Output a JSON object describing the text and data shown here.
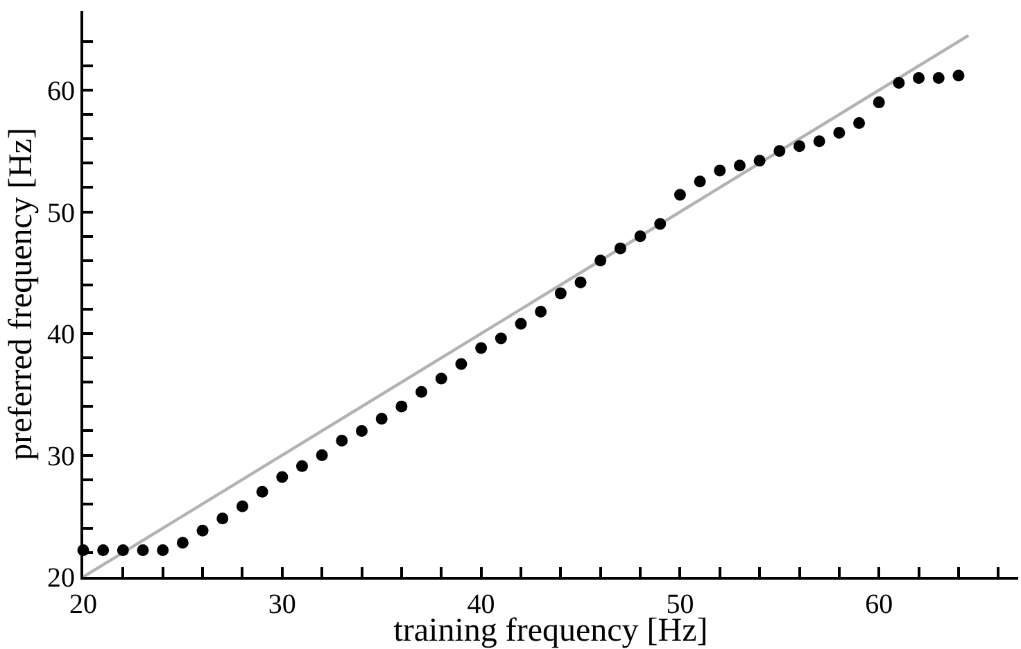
{
  "chart_data": {
    "type": "scatter",
    "xlabel": "training frequency [Hz]",
    "ylabel": "preferred frequency [Hz]",
    "xlim": [
      20,
      67
    ],
    "ylim": [
      20,
      66.5
    ],
    "xticks": [
      20,
      {
        "value": 22,
        "label": null
      },
      {
        "value": 24,
        "label": null
      },
      {
        "value": 26,
        "label": null
      },
      {
        "value": 28,
        "label": null
      },
      30,
      {
        "value": 32,
        "label": null
      },
      {
        "value": 34,
        "label": null
      },
      {
        "value": 36,
        "label": null
      },
      {
        "value": 38,
        "label": null
      },
      40,
      {
        "value": 42,
        "label": null
      },
      {
        "value": 44,
        "label": null
      },
      {
        "value": 46,
        "label": null
      },
      {
        "value": 48,
        "label": null
      },
      50,
      {
        "value": 52,
        "label": null
      },
      {
        "value": 54,
        "label": null
      },
      {
        "value": 56,
        "label": null
      },
      {
        "value": 58,
        "label": null
      },
      60,
      {
        "value": 62,
        "label": null
      },
      {
        "value": 64,
        "label": null
      },
      {
        "value": 66,
        "label": null
      }
    ],
    "yticks": [
      20,
      {
        "value": 22,
        "label": null
      },
      {
        "value": 24,
        "label": null
      },
      {
        "value": 26,
        "label": null
      },
      {
        "value": 28,
        "label": null
      },
      30,
      {
        "value": 32,
        "label": null
      },
      {
        "value": 34,
        "label": null
      },
      {
        "value": 36,
        "label": null
      },
      {
        "value": 38,
        "label": null
      },
      40,
      {
        "value": 42,
        "label": null
      },
      {
        "value": 44,
        "label": null
      },
      {
        "value": 46,
        "label": null
      },
      {
        "value": 48,
        "label": null
      },
      50,
      {
        "value": 52,
        "label": null
      },
      {
        "value": 54,
        "label": null
      },
      {
        "value": 56,
        "label": null
      },
      {
        "value": 58,
        "label": null
      },
      60,
      {
        "value": 62,
        "label": null
      },
      {
        "value": 64,
        "label": null
      }
    ],
    "series": [
      {
        "type": "line",
        "color": "#b3b3b3",
        "marker": "none",
        "line_style": "solid",
        "x": [
          20,
          64.5
        ],
        "values": [
          20,
          64.5
        ]
      },
      {
        "color": "#000000",
        "marker": "circle",
        "x": [
          20,
          21,
          22,
          23,
          24,
          25,
          26,
          27,
          28,
          29,
          30,
          31,
          32,
          33,
          34,
          35,
          36,
          37,
          38,
          39,
          40,
          41,
          42,
          43,
          44,
          45,
          46,
          47,
          48,
          49,
          50,
          51,
          52,
          53,
          54,
          55,
          56,
          57,
          58,
          59,
          60,
          61,
          62,
          63,
          64
        ],
        "values": [
          22.2,
          22.2,
          22.2,
          22.2,
          22.2,
          22.8,
          23.8,
          24.8,
          25.8,
          27.0,
          28.2,
          29.1,
          30.0,
          31.2,
          32.0,
          33.0,
          34.0,
          35.2,
          36.3,
          37.5,
          38.8,
          39.6,
          40.8,
          41.8,
          43.3,
          44.2,
          46.0,
          47.0,
          48.0,
          49.0,
          51.4,
          52.5,
          53.4,
          53.8,
          54.2,
          55.0,
          55.4,
          55.8,
          56.5,
          57.3,
          59.0,
          60.6,
          61.0,
          61.0,
          61.2
        ]
      }
    ]
  }
}
